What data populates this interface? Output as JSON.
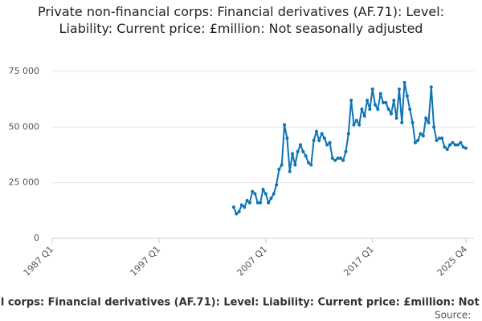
{
  "chart_data": {
    "type": "line",
    "title": "Private non-financial corps: Financial derivatives (AF.71): Level: Liability: Current price: £million: Not seasonally adjusted",
    "source_label": "Source:",
    "categories": [
      "1987 Q1",
      "1987 Q2",
      "1987 Q3",
      "1987 Q4",
      "1988 Q1",
      "1988 Q2",
      "1988 Q3",
      "1988 Q4",
      "1989 Q1",
      "1989 Q2",
      "1989 Q3",
      "1989 Q4",
      "1990 Q1",
      "1990 Q2",
      "1990 Q3",
      "1990 Q4",
      "1991 Q1",
      "1991 Q2",
      "1991 Q3",
      "1991 Q4",
      "1992 Q1",
      "1992 Q2",
      "1992 Q3",
      "1992 Q4",
      "1993 Q1",
      "1993 Q2",
      "1993 Q3",
      "1993 Q4",
      "1994 Q1",
      "1994 Q2",
      "1994 Q3",
      "1994 Q4",
      "1995 Q1",
      "1995 Q2",
      "1995 Q3",
      "1995 Q4",
      "1996 Q1",
      "1996 Q2",
      "1996 Q3",
      "1996 Q4",
      "1997 Q1",
      "1997 Q2",
      "1997 Q3",
      "1997 Q4",
      "1998 Q1",
      "1998 Q2",
      "1998 Q3",
      "1998 Q4",
      "1999 Q1",
      "1999 Q2",
      "1999 Q3",
      "1999 Q4",
      "2000 Q1",
      "2000 Q2",
      "2000 Q3",
      "2000 Q4",
      "2001 Q1",
      "2001 Q2",
      "2001 Q3",
      "2001 Q4",
      "2002 Q1",
      "2002 Q2",
      "2002 Q3",
      "2002 Q4",
      "2003 Q1",
      "2003 Q2",
      "2003 Q3",
      "2003 Q4",
      "2004 Q1",
      "2004 Q2",
      "2004 Q3",
      "2004 Q4",
      "2005 Q1",
      "2005 Q2",
      "2005 Q3",
      "2005 Q4",
      "2006 Q1",
      "2006 Q2",
      "2006 Q3",
      "2006 Q4",
      "2007 Q1",
      "2007 Q2",
      "2007 Q3",
      "2007 Q4",
      "2008 Q1",
      "2008 Q2",
      "2008 Q3",
      "2008 Q4",
      "2009 Q1",
      "2009 Q2",
      "2009 Q3",
      "2009 Q4",
      "2010 Q1",
      "2010 Q2",
      "2010 Q3",
      "2010 Q4",
      "2011 Q1",
      "2011 Q2",
      "2011 Q3",
      "2011 Q4",
      "2012 Q1",
      "2012 Q2",
      "2012 Q3",
      "2012 Q4",
      "2013 Q1",
      "2013 Q2",
      "2013 Q3",
      "2013 Q4",
      "2014 Q1",
      "2014 Q2",
      "2014 Q3",
      "2014 Q4",
      "2015 Q1",
      "2015 Q2",
      "2015 Q3",
      "2015 Q4",
      "2016 Q1",
      "2016 Q2",
      "2016 Q3",
      "2016 Q4",
      "2017 Q1",
      "2017 Q2",
      "2017 Q3",
      "2017 Q4",
      "2018 Q1",
      "2018 Q2",
      "2018 Q3",
      "2018 Q4",
      "2019 Q1",
      "2019 Q2",
      "2019 Q3",
      "2019 Q4",
      "2020 Q1",
      "2020 Q2",
      "2020 Q3",
      "2020 Q4",
      "2021 Q1",
      "2021 Q2",
      "2021 Q3",
      "2021 Q4",
      "2022 Q1",
      "2022 Q2",
      "2022 Q3",
      "2022 Q4",
      "2023 Q1",
      "2023 Q2",
      "2023 Q3",
      "2023 Q4",
      "2024 Q1",
      "2024 Q2",
      "2024 Q3",
      "2024 Q4",
      "2025 Q1",
      "2025 Q2",
      "2025 Q3",
      "2025 Q4"
    ],
    "values": [
      null,
      null,
      null,
      null,
      null,
      null,
      null,
      null,
      null,
      null,
      null,
      null,
      null,
      null,
      null,
      null,
      null,
      null,
      null,
      null,
      null,
      null,
      null,
      null,
      null,
      null,
      null,
      null,
      null,
      null,
      null,
      null,
      null,
      null,
      null,
      null,
      null,
      null,
      null,
      null,
      null,
      null,
      null,
      null,
      null,
      null,
      null,
      null,
      null,
      null,
      null,
      null,
      null,
      null,
      null,
      null,
      null,
      null,
      null,
      null,
      null,
      null,
      null,
      null,
      null,
      null,
      null,
      null,
      14000,
      11000,
      12000,
      15000,
      14000,
      17000,
      16000,
      21000,
      20000,
      16000,
      16000,
      22000,
      20000,
      16000,
      18000,
      20000,
      24000,
      31000,
      33000,
      51000,
      45000,
      30000,
      38000,
      33000,
      39000,
      42000,
      39000,
      37000,
      34000,
      33000,
      44000,
      48000,
      44000,
      47000,
      45000,
      42000,
      43000,
      36000,
      35000,
      36000,
      36000,
      35000,
      39000,
      47000,
      62000,
      51000,
      53000,
      51000,
      58000,
      55000,
      62000,
      58000,
      67000,
      60000,
      58000,
      65000,
      61000,
      61000,
      58000,
      56000,
      62000,
      54000,
      67000,
      52000,
      70000,
      64000,
      58000,
      52000,
      43000,
      44000,
      47000,
      46000,
      54000,
      52000,
      68000,
      50000,
      44000,
      45000,
      45000,
      41000,
      40000,
      42000,
      43000,
      42000,
      42000,
      43000,
      41000,
      40500
    ],
    "color": "#0b74b5",
    "ylim": [
      0,
      75000
    ],
    "yticks": [
      0,
      {
        "value": 25000,
        "label": "25 000"
      },
      {
        "value": 50000,
        "label": "50 000"
      },
      {
        "value": 75000,
        "label": "75 000"
      }
    ],
    "xticks": [
      "1987 Q1",
      "1997 Q1",
      "2007 Q1",
      "2017 Q1",
      "2025 Q4"
    ],
    "grid": true
  }
}
